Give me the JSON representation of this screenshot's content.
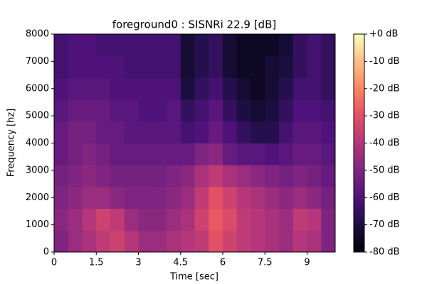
{
  "chart_data": {
    "type": "heatmap",
    "title": "foreground0 : SISNRi 22.9 [dB]",
    "x_label": "Time [sec]",
    "y_label": "Frequency [hz]",
    "xlim": [
      0,
      10
    ],
    "ylim": [
      0,
      8000
    ],
    "xticks": [
      0,
      1.5,
      3,
      4.5,
      6,
      7.5,
      9
    ],
    "yticks": [
      0,
      1000,
      2000,
      3000,
      4000,
      5000,
      6000,
      7000,
      8000
    ],
    "colormap": "magma",
    "clim": [
      -80,
      0
    ],
    "cticks": [
      {
        "value": 0,
        "label": "+0 dB"
      },
      {
        "value": -10,
        "label": "-10 dB"
      },
      {
        "value": -20,
        "label": "-20 dB"
      },
      {
        "value": -30,
        "label": "-30 dB"
      },
      {
        "value": -40,
        "label": "-40 dB"
      },
      {
        "value": -50,
        "label": "-50 dB"
      },
      {
        "value": -60,
        "label": "-60 dB"
      },
      {
        "value": -70,
        "label": "-70 dB"
      },
      {
        "value": -80,
        "label": "-80 dB"
      }
    ],
    "z": [
      [
        -50,
        -45,
        -42,
        -38,
        -35,
        -40,
        -45,
        -45,
        -42,
        -40,
        -38,
        -30,
        -35,
        -38,
        -40,
        -42,
        -45,
        -40,
        -42,
        -50
      ],
      [
        -48,
        -45,
        -40,
        -35,
        -38,
        -45,
        -48,
        -48,
        -45,
        -42,
        -35,
        -28,
        -32,
        -38,
        -40,
        -42,
        -45,
        -38,
        -40,
        -50
      ],
      [
        -50,
        -48,
        -45,
        -45,
        -48,
        -50,
        -50,
        -50,
        -48,
        -45,
        -38,
        -30,
        -35,
        -40,
        -42,
        -45,
        -48,
        -45,
        -48,
        -52
      ],
      [
        -52,
        -50,
        -48,
        -50,
        -52,
        -52,
        -52,
        -52,
        -50,
        -48,
        -42,
        -38,
        -42,
        -45,
        -48,
        -50,
        -52,
        -50,
        -52,
        -55
      ],
      [
        -55,
        -52,
        -50,
        -52,
        -55,
        -55,
        -55,
        -55,
        -55,
        -55,
        -50,
        -48,
        -55,
        -58,
        -58,
        -60,
        -58,
        -55,
        -55,
        -58
      ],
      [
        -55,
        -52,
        -52,
        -55,
        -55,
        -58,
        -58,
        -58,
        -58,
        -62,
        -60,
        -55,
        -60,
        -65,
        -68,
        -68,
        -62,
        -58,
        -58,
        -60
      ],
      [
        -58,
        -55,
        -55,
        -55,
        -58,
        -58,
        -60,
        -60,
        -58,
        -65,
        -62,
        -58,
        -65,
        -70,
        -72,
        -70,
        -65,
        -60,
        -60,
        -62
      ],
      [
        -60,
        -58,
        -58,
        -58,
        -60,
        -60,
        -60,
        -60,
        -60,
        -70,
        -65,
        -62,
        -68,
        -72,
        -75,
        -72,
        -68,
        -62,
        -62,
        -65
      ],
      [
        -62,
        -60,
        -60,
        -60,
        -60,
        -62,
        -62,
        -62,
        -62,
        -72,
        -68,
        -65,
        -72,
        -75,
        -75,
        -72,
        -70,
        -65,
        -62,
        -65
      ],
      [
        -62,
        -60,
        -60,
        -62,
        -62,
        -62,
        -62,
        -62,
        -62,
        -72,
        -68,
        -65,
        -72,
        -75,
        -75,
        -75,
        -72,
        -65,
        -62,
        -65
      ]
    ]
  }
}
